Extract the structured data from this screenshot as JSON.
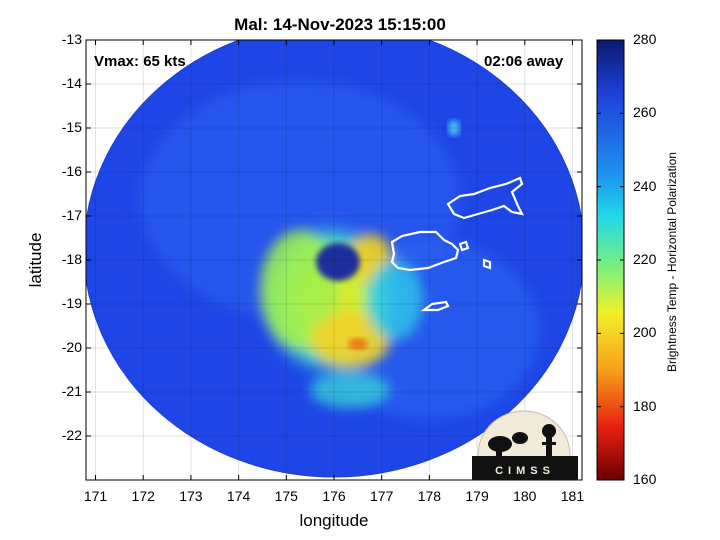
{
  "title": "Mal: 14-Nov-2023 15:15:00",
  "annotations": {
    "vmax": "Vmax: 65 kts",
    "time_away": "02:06 away"
  },
  "logo": {
    "text": "CIMSS"
  },
  "chart_data": {
    "type": "heatmap",
    "title": "Mal: 14-Nov-2023 15:15:00",
    "xlabel": "longitude",
    "ylabel": "latitude",
    "xlim": [
      170.8,
      181.2
    ],
    "ylim": [
      -23,
      -13
    ],
    "x_ticks": [
      "171",
      "172",
      "173",
      "174",
      "175",
      "176",
      "177",
      "178",
      "179",
      "180",
      "181"
    ],
    "y_ticks": [
      "-13",
      "-14",
      "-15",
      "-16",
      "-17",
      "-18",
      "-19",
      "-20",
      "-21",
      "-22"
    ],
    "grid": true,
    "colorbar": {
      "label": "Brightness Temp - Horizontal Polarization",
      "range": [
        160,
        280
      ],
      "ticks": [
        "280",
        "260",
        "240",
        "220",
        "200",
        "180",
        "160"
      ],
      "colormap": "jet"
    },
    "storm_center": {
      "lon": 176.2,
      "lat": -18.2
    },
    "swath_center": {
      "lon": 176.0,
      "lat": -17.8
    },
    "colors": {
      "background_field": "#1e46e6",
      "warm_min": "#6a0000",
      "cold_max": "#0a1a6e",
      "coastline": "#ffffff"
    }
  }
}
